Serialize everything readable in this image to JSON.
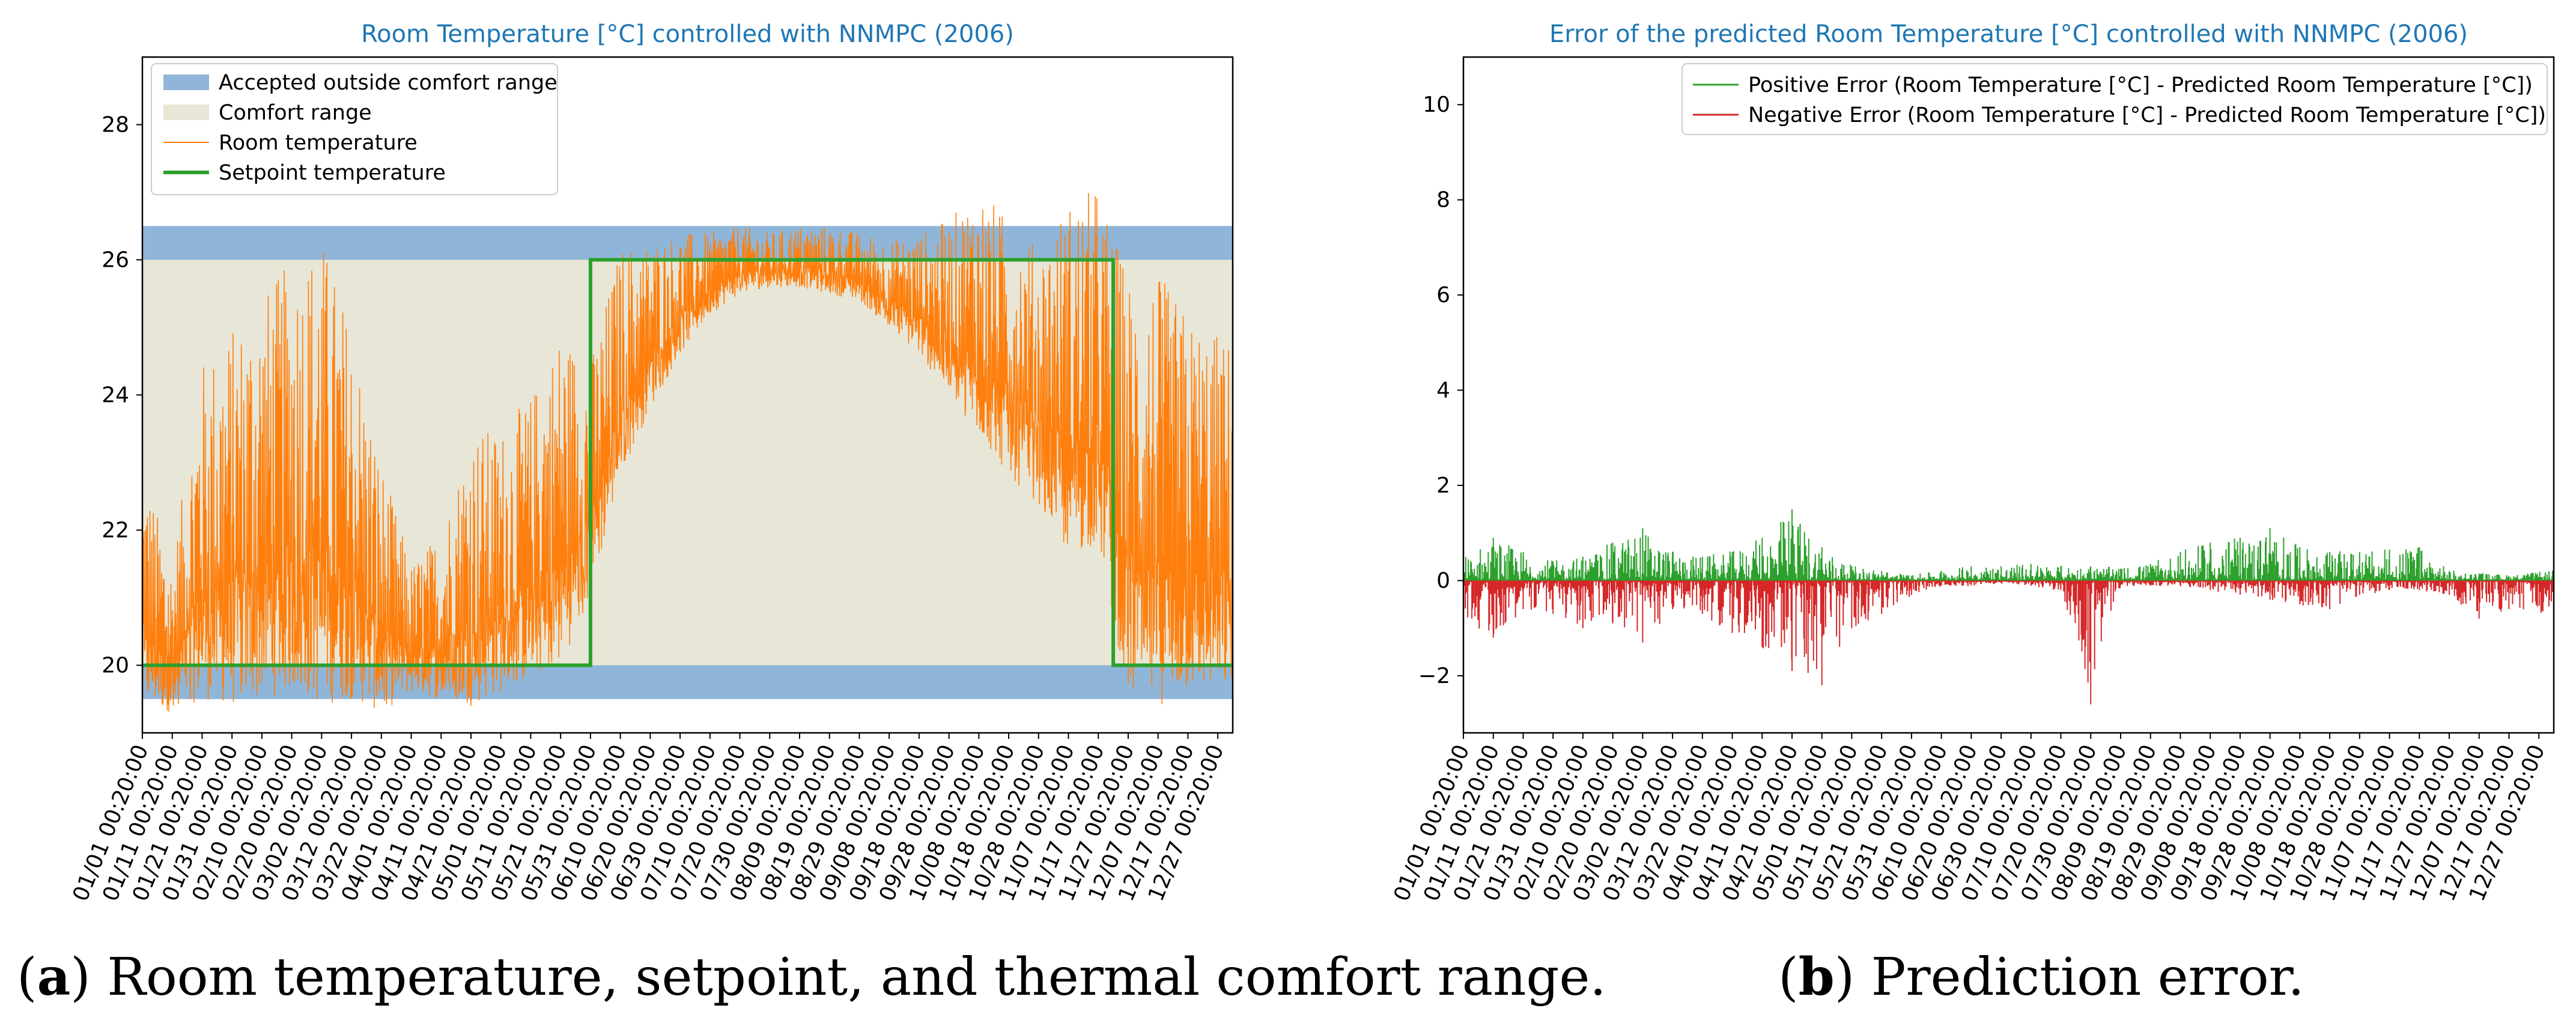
{
  "chart_data": [
    {
      "type": "line",
      "title": "Room Temperature [°C] controlled with NNMPC (2006)",
      "caption_label": "a",
      "caption_text": " Room temperature, setpoint, and thermal comfort range.",
      "ylim": [
        19,
        29
      ],
      "yticks": [
        20,
        22,
        24,
        26,
        28
      ],
      "x_tick_labels": [
        "01/01  00:20:00",
        "01/11  00:20:00",
        "01/21  00:20:00",
        "01/31  00:20:00",
        "02/10  00:20:00",
        "02/20  00:20:00",
        "03/02  00:20:00",
        "03/12  00:20:00",
        "03/22  00:20:00",
        "04/01  00:20:00",
        "04/11  00:20:00",
        "04/21  00:20:00",
        "05/01  00:20:00",
        "05/11  00:20:00",
        "05/21  00:20:00",
        "05/31  00:20:00",
        "06/10  00:20:00",
        "06/20  00:20:00",
        "06/30  00:20:00",
        "07/10  00:20:00",
        "07/20  00:20:00",
        "07/30  00:20:00",
        "08/09  00:20:00",
        "08/19  00:20:00",
        "08/29  00:20:00",
        "09/08  00:20:00",
        "09/18  00:20:00",
        "09/28  00:20:00",
        "10/08  00:20:00",
        "10/18  00:20:00",
        "10/28  00:20:00",
        "11/07  00:20:00",
        "11/17  00:20:00",
        "11/27  00:20:00",
        "12/07  00:20:00",
        "12/17  00:20:00",
        "12/27  00:20:00"
      ],
      "x_range_days": [
        0,
        365
      ],
      "legend": [
        {
          "label": "Accepted outside comfort range",
          "color": "#8fb6d8"
        },
        {
          "label": "Comfort range",
          "color": "#e8e6d6"
        },
        {
          "label": "Room temperature",
          "color": "#ff7f0e"
        },
        {
          "label": "Setpoint temperature",
          "color": "#2ca02c"
        }
      ],
      "bands": {
        "accepted_lower": [
          19.5,
          20.0
        ],
        "accepted_upper": [
          26.0,
          26.5
        ],
        "comfort": [
          20.0,
          26.0
        ]
      },
      "setpoint": [
        {
          "day": 0,
          "value": 20
        },
        {
          "day": 150,
          "value": 20
        },
        {
          "day": 150,
          "value": 26
        },
        {
          "day": 325,
          "value": 26
        },
        {
          "day": 325,
          "value": 20
        },
        {
          "day": 365,
          "value": 20
        }
      ],
      "room_temperature_envelope": {
        "description_days": [
          0,
          10,
          20,
          30,
          40,
          50,
          60,
          70,
          80,
          90,
          100,
          110,
          120,
          130,
          140,
          150,
          160,
          170,
          180,
          190,
          200,
          210,
          220,
          230,
          240,
          250,
          260,
          270,
          280,
          290,
          300,
          310,
          320,
          330,
          340,
          350,
          365
        ],
        "low": [
          19.4,
          19.3,
          19.5,
          19.4,
          19.5,
          19.6,
          19.4,
          19.5,
          19.3,
          19.6,
          19.5,
          19.4,
          19.6,
          19.8,
          20.0,
          21.0,
          22.8,
          23.8,
          24.6,
          25.2,
          25.5,
          25.6,
          25.6,
          25.5,
          25.4,
          25.0,
          24.6,
          24.0,
          23.4,
          22.8,
          22.4,
          21.6,
          21.8,
          19.5,
          19.4,
          19.6,
          19.6
        ],
        "high": [
          23.0,
          21.5,
          24.5,
          25.0,
          25.5,
          26.0,
          26.4,
          25.0,
          23.0,
          21.5,
          22.0,
          23.5,
          23.5,
          24.0,
          25.0,
          24.5,
          26.2,
          26.3,
          26.4,
          26.4,
          26.5,
          26.4,
          26.5,
          26.5,
          26.4,
          26.3,
          26.4,
          26.6,
          27.1,
          26.6,
          26.2,
          26.9,
          27.1,
          25.8,
          25.8,
          25.2,
          24.8
        ]
      },
      "ylabel": "",
      "xlabel": ""
    },
    {
      "type": "line",
      "title": "Error of the predicted Room Temperature [°C] controlled with NNMPC (2006)",
      "caption_label": "b",
      "caption_text": " Prediction error.",
      "ylim": [
        -3.2,
        11
      ],
      "yticks": [
        -2,
        0,
        2,
        4,
        6,
        8,
        10
      ],
      "x_tick_labels": [
        "01/01  00:20:00",
        "01/11  00:20:00",
        "01/21  00:20:00",
        "01/31  00:20:00",
        "02/10  00:20:00",
        "02/20  00:20:00",
        "03/02  00:20:00",
        "03/12  00:20:00",
        "03/22  00:20:00",
        "04/01  00:20:00",
        "04/11  00:20:00",
        "04/21  00:20:00",
        "05/01  00:20:00",
        "05/11  00:20:00",
        "05/21  00:20:00",
        "05/31  00:20:00",
        "06/10  00:20:00",
        "06/20  00:20:00",
        "06/30  00:20:00",
        "07/10  00:20:00",
        "07/20  00:20:00",
        "07/30  00:20:00",
        "08/09  00:20:00",
        "08/19  00:20:00",
        "08/29  00:20:00",
        "09/08  00:20:00",
        "09/18  00:20:00",
        "09/28  00:20:00",
        "10/08  00:20:00",
        "10/18  00:20:00",
        "10/28  00:20:00",
        "11/07  00:20:00",
        "11/17  00:20:00",
        "11/27  00:20:00",
        "12/07  00:20:00",
        "12/17  00:20:00",
        "12/27  00:20:00"
      ],
      "x_range_days": [
        0,
        365
      ],
      "legend": [
        {
          "label": "Positive Error (Room Temperature [°C] - Predicted Room Temperature [°C])",
          "color": "#2ca02c"
        },
        {
          "label": "Negative Error (Room Temperature [°C] - Predicted Room Temperature [°C])",
          "color": "#d62728"
        }
      ],
      "positive_error_envelope": {
        "days": [
          0,
          10,
          20,
          30,
          40,
          50,
          60,
          70,
          80,
          90,
          100,
          110,
          120,
          130,
          140,
          150,
          160,
          170,
          180,
          190,
          200,
          210,
          220,
          230,
          240,
          250,
          260,
          270,
          280,
          290,
          300,
          310,
          320,
          330,
          340,
          350,
          365
        ],
        "high": [
          0.5,
          0.9,
          0.6,
          0.4,
          0.5,
          0.8,
          1.1,
          0.6,
          0.5,
          0.6,
          0.9,
          1.5,
          0.7,
          0.3,
          0.2,
          0.1,
          0.2,
          0.3,
          0.3,
          0.35,
          0.3,
          0.3,
          0.25,
          0.35,
          0.6,
          0.8,
          0.9,
          1.1,
          0.7,
          0.6,
          0.6,
          0.65,
          0.7,
          0.2,
          0.15,
          0.1,
          0.2
        ]
      },
      "negative_error_envelope": {
        "days": [
          0,
          10,
          20,
          30,
          40,
          50,
          60,
          70,
          80,
          90,
          100,
          110,
          120,
          130,
          140,
          150,
          160,
          170,
          180,
          190,
          200,
          210,
          220,
          230,
          240,
          250,
          260,
          270,
          280,
          290,
          300,
          310,
          320,
          330,
          340,
          350,
          365
        ],
        "low": [
          -0.8,
          -1.2,
          -0.6,
          -0.7,
          -1.0,
          -0.9,
          -1.3,
          -0.6,
          -0.7,
          -1.1,
          -1.4,
          -1.9,
          -2.2,
          -1.0,
          -0.7,
          -0.3,
          -0.1,
          -0.1,
          -0.05,
          -0.1,
          -0.2,
          -2.6,
          -0.1,
          -0.1,
          -0.1,
          -0.2,
          -0.3,
          -0.4,
          -0.5,
          -0.6,
          -0.3,
          -0.2,
          -0.2,
          -0.3,
          -0.8,
          -0.6,
          -0.9
        ]
      },
      "ylabel": "",
      "xlabel": ""
    }
  ]
}
